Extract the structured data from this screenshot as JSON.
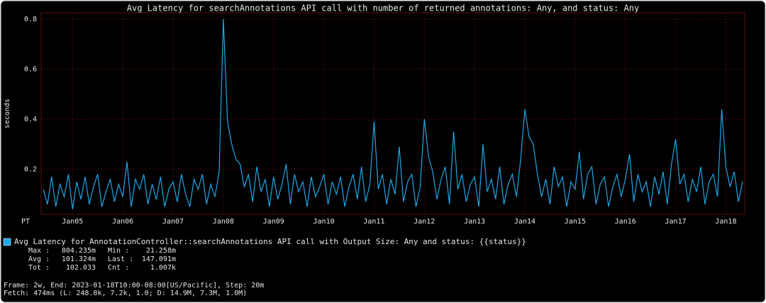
{
  "chart_data": {
    "type": "line",
    "title": "Avg Latency for searchAnnotations API call with number of returned annotations: Any, and status: Any",
    "y_label": "seconds",
    "x_timezone": "PT",
    "ylim": [
      0.02,
      0.825
    ],
    "yticks": [
      0.2,
      0.4,
      0.6,
      0.8
    ],
    "grid": true,
    "categories": [
      null,
      null,
      null,
      null,
      null,
      null,
      null,
      "Jan05",
      null,
      null,
      null,
      null,
      null,
      null,
      null,
      null,
      null,
      null,
      null,
      "Jan06",
      null,
      null,
      null,
      null,
      null,
      null,
      null,
      null,
      null,
      null,
      null,
      "Jan07",
      null,
      null,
      null,
      null,
      null,
      null,
      null,
      null,
      null,
      null,
      null,
      "Jan08",
      null,
      null,
      null,
      null,
      null,
      null,
      null,
      null,
      null,
      null,
      null,
      "Jan09",
      null,
      null,
      null,
      null,
      null,
      null,
      null,
      null,
      null,
      null,
      null,
      "Jan10",
      null,
      null,
      null,
      null,
      null,
      null,
      null,
      null,
      null,
      null,
      null,
      "Jan11",
      null,
      null,
      null,
      null,
      null,
      null,
      null,
      null,
      null,
      null,
      null,
      "Jan12",
      null,
      null,
      null,
      null,
      null,
      null,
      null,
      null,
      null,
      null,
      null,
      "Jan13",
      null,
      null,
      null,
      null,
      null,
      null,
      null,
      null,
      null,
      null,
      null,
      "Jan14",
      null,
      null,
      null,
      null,
      null,
      null,
      null,
      null,
      null,
      null,
      null,
      "Jan15",
      null,
      null,
      null,
      null,
      null,
      null,
      null,
      null,
      null,
      null,
      null,
      "Jan16",
      null,
      null,
      null,
      null,
      null,
      null,
      null,
      null,
      null,
      null,
      null,
      "Jan17",
      null,
      null,
      null,
      null,
      null,
      null,
      null,
      null,
      null,
      null,
      null,
      "Jan18",
      null,
      null,
      null,
      null
    ],
    "series": [
      {
        "name": "Avg Latency for AnnotationController::searchAnnotations API call with Output Size: Any and status: {{status}}",
        "color": "#1ea7e8",
        "values": [
          0.12,
          0.06,
          0.17,
          0.05,
          0.14,
          0.09,
          0.18,
          0.04,
          0.15,
          0.08,
          0.17,
          0.06,
          0.13,
          0.18,
          0.05,
          0.11,
          0.16,
          0.07,
          0.14,
          0.09,
          0.23,
          0.05,
          0.16,
          0.12,
          0.18,
          0.06,
          0.14,
          0.08,
          0.17,
          0.05,
          0.12,
          0.15,
          0.07,
          0.18,
          0.1,
          0.05,
          0.16,
          0.12,
          0.18,
          0.06,
          0.14,
          0.09,
          0.19,
          0.8,
          0.39,
          0.3,
          0.24,
          0.22,
          0.13,
          0.18,
          0.07,
          0.21,
          0.11,
          0.16,
          0.05,
          0.17,
          0.08,
          0.14,
          0.22,
          0.06,
          0.18,
          0.11,
          0.15,
          0.05,
          0.17,
          0.09,
          0.13,
          0.18,
          0.06,
          0.15,
          0.1,
          0.17,
          0.05,
          0.13,
          0.18,
          0.08,
          0.21,
          0.07,
          0.14,
          0.39,
          0.12,
          0.18,
          0.06,
          0.16,
          0.1,
          0.29,
          0.07,
          0.15,
          0.18,
          0.05,
          0.13,
          0.4,
          0.25,
          0.19,
          0.08,
          0.16,
          0.21,
          0.06,
          0.35,
          0.12,
          0.18,
          0.07,
          0.14,
          0.17,
          0.05,
          0.3,
          0.11,
          0.16,
          0.08,
          0.21,
          0.06,
          0.14,
          0.18,
          0.09,
          0.24,
          0.44,
          0.33,
          0.3,
          0.18,
          0.09,
          0.16,
          0.06,
          0.21,
          0.13,
          0.17,
          0.05,
          0.15,
          0.12,
          0.27,
          0.08,
          0.18,
          0.21,
          0.06,
          0.14,
          0.17,
          0.05,
          0.13,
          0.18,
          0.09,
          0.16,
          0.26,
          0.07,
          0.18,
          0.11,
          0.15,
          0.05,
          0.17,
          0.1,
          0.19,
          0.06,
          0.22,
          0.32,
          0.14,
          0.18,
          0.07,
          0.16,
          0.11,
          0.21,
          0.06,
          0.15,
          0.18,
          0.09,
          0.44,
          0.21,
          0.13,
          0.19,
          0.07,
          0.15
        ]
      }
    ],
    "stats": [
      [
        "Max :",
        "804.235m",
        "Min :",
        "21.258m"
      ],
      [
        "Avg :",
        "101.324m",
        "Last :",
        "147.091m"
      ],
      [
        "Tot :",
        "102.033",
        "Cnt :",
        "1.007k"
      ]
    ],
    "footer": [
      "Frame: 2w, End: 2023-01-18T10:00-08:00[US/Pacific], Step: 20m",
      "Fetch: 474ms (L: 248.0k, 7.2k, 1.0; D: 14.9M, 7.3M, 1.0M)"
    ]
  }
}
